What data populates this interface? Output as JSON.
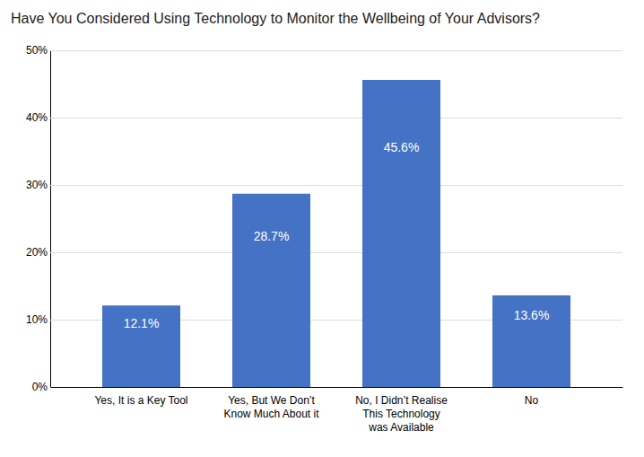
{
  "chart_data": {
    "type": "bar",
    "title": "Have You Considered Using Technology to Monitor the Wellbeing of Your Advisors?",
    "categories": [
      "Yes, It is a Key Tool",
      "Yes, But We Don’t\nKnow Much About it",
      "No, I Didn’t Realise\nThis Technology\nwas Available",
      "No"
    ],
    "values": [
      12.1,
      28.7,
      45.6,
      13.6
    ],
    "value_labels": [
      "12.1%",
      "28.7%",
      "45.6%",
      "13.6%"
    ],
    "data_labels": true,
    "color": "#4472C4",
    "ylim": [
      0,
      50
    ],
    "yticks": [
      {
        "value": 0,
        "label": "0%"
      },
      {
        "value": 10,
        "label": "10%"
      },
      {
        "value": 20,
        "label": "20%"
      },
      {
        "value": 30,
        "label": "30%"
      },
      {
        "value": 40,
        "label": "40%"
      },
      {
        "value": 50,
        "label": "50%"
      }
    ],
    "grid": true
  }
}
